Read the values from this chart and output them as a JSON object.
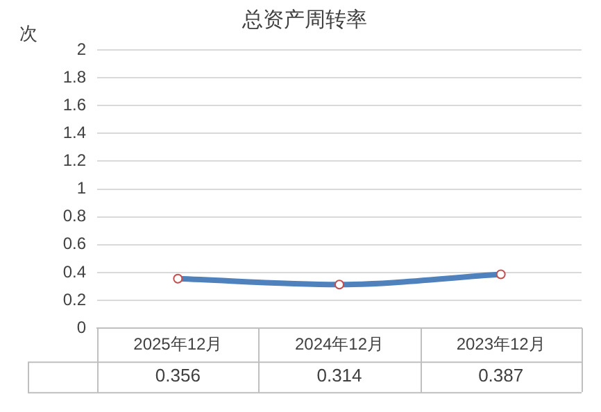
{
  "chart_data": {
    "type": "line",
    "title": "总资产周转率",
    "ylabel": "次",
    "categories": [
      "2025年12月",
      "2024年12月",
      "2023年12月"
    ],
    "series": [
      {
        "color": "#4f81bd",
        "values": [
          0.356,
          0.314,
          0.387
        ]
      }
    ],
    "ylim": [
      0,
      2
    ],
    "yticks": [
      0,
      0.2,
      0.4,
      0.6,
      0.8,
      1,
      1.2,
      1.4,
      1.6,
      1.8,
      2
    ],
    "grid": "y",
    "legend": false,
    "marker": "circle",
    "line_style": "solid",
    "data_labels": true
  }
}
